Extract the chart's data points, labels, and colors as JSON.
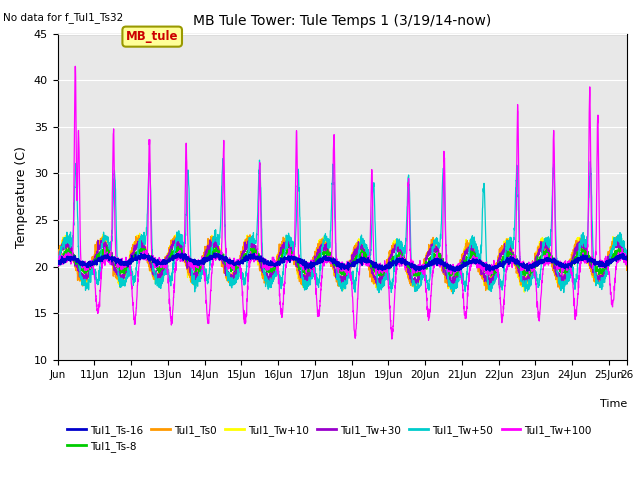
{
  "title": "MB Tule Tower: Tule Temps 1 (3/19/14-now)",
  "no_data_text": "No data for f_Tul1_Ts32",
  "ylabel": "Temperature (C)",
  "xlabel": "Time",
  "ylim": [
    10,
    45
  ],
  "yticks": [
    10,
    15,
    20,
    25,
    30,
    35,
    40,
    45
  ],
  "xlim": [
    0,
    15.5
  ],
  "xtick_labels": [
    "Jun",
    "11Jun",
    "12Jun",
    "13Jun",
    "14Jun",
    "15Jun",
    "16Jun",
    "17Jun",
    "18Jun",
    "19Jun",
    "20Jun",
    "21Jun",
    "22Jun",
    "23Jun",
    "24Jun",
    "25Jun",
    "26"
  ],
  "xtick_positions": [
    0,
    1,
    2,
    3,
    4,
    5,
    6,
    7,
    8,
    9,
    10,
    11,
    12,
    13,
    14,
    15,
    15.5
  ],
  "legend_entries": [
    "Tul1_Ts-16",
    "Tul1_Ts-8",
    "Tul1_Ts0",
    "Tul1_Tw+10",
    "Tul1_Tw+30",
    "Tul1_Tw+50",
    "Tul1_Tw+100"
  ],
  "legend_colors": [
    "#0000cc",
    "#00cc00",
    "#ff9900",
    "#ffff00",
    "#9900cc",
    "#00cccc",
    "#ff00ff"
  ],
  "plot_bg_color": "#e8e8e8",
  "lighter_band_color": "#f0f0f0",
  "mb_tule_box_color": "#ffff99",
  "mb_tule_text_color": "#cc0000",
  "mb_tule_edge_color": "#999900"
}
